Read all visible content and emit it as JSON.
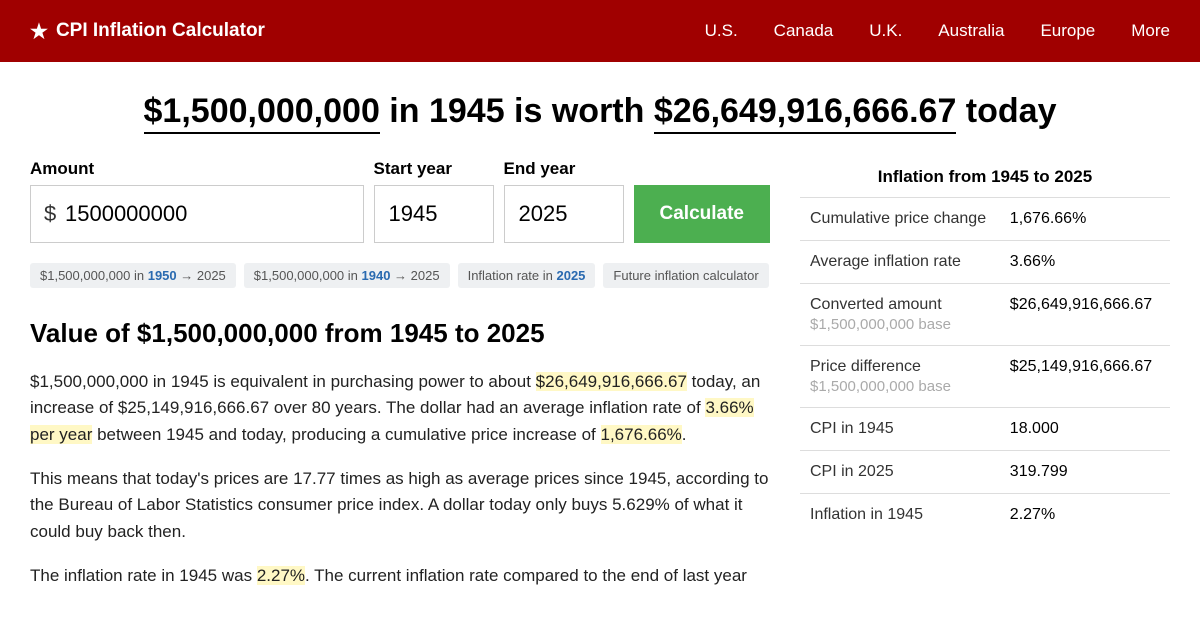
{
  "header": {
    "brand": "CPI Inflation Calculator",
    "nav": [
      "U.S.",
      "Canada",
      "U.K.",
      "Australia",
      "Europe",
      "More"
    ]
  },
  "headline": {
    "amount1": "$1,500,000,000",
    "mid1": " in 1945 is worth ",
    "amount2": "$26,649,916,666.67",
    "mid2": " today"
  },
  "form": {
    "amount_label": "Amount",
    "amount_value": "1500000000",
    "start_label": "Start year",
    "start_value": "1945",
    "end_label": "End year",
    "end_value": "2025",
    "button": "Calculate"
  },
  "chips": [
    {
      "pre": "$1,500,000,000 in ",
      "bold": "1950",
      "post": " → 2025"
    },
    {
      "pre": "$1,500,000,000 in ",
      "bold": "1940",
      "post": " → 2025"
    },
    {
      "pre": "Inflation rate in ",
      "bold": "2025",
      "post": ""
    },
    {
      "pre": "Future inflation calculator",
      "bold": "",
      "post": ""
    }
  ],
  "section_title": "Value of $1,500,000,000 from 1945 to 2025",
  "paragraphs": {
    "p1a": "$1,500,000,000 in 1945 is equivalent in purchasing power to about ",
    "p1h1": "$26,649,916,666.67",
    "p1b": " today, an increase of $25,149,916,666.67 over 80 years. The dollar had an average inflation rate of ",
    "p1h2": "3.66% per year",
    "p1c": " between 1945 and today, producing a cumulative price increase of ",
    "p1h3": "1,676.66%",
    "p1d": ".",
    "p2": "This means that today's prices are 17.77 times as high as average prices since 1945, according to the Bureau of Labor Statistics consumer price index. A dollar today only buys 5.629% of what it could buy back then.",
    "p3a": "The inflation rate in 1945 was ",
    "p3h1": "2.27%",
    "p3b": ". The current inflation rate compared to the end of last year"
  },
  "summary": {
    "title": "Inflation from 1945 to 2025",
    "rows": [
      {
        "label": "Cumulative price change",
        "sub": "",
        "value": "1,676.66%"
      },
      {
        "label": "Average inflation rate",
        "sub": "",
        "value": "3.66%"
      },
      {
        "label": "Converted amount",
        "sub": "$1,500,000,000 base",
        "value": "$26,649,916,666.67"
      },
      {
        "label": "Price difference",
        "sub": "$1,500,000,000 base",
        "value": "$25,149,916,666.67"
      },
      {
        "label": "CPI in 1945",
        "sub": "",
        "value": "18.000"
      },
      {
        "label": "CPI in 2025",
        "sub": "",
        "value": "319.799"
      },
      {
        "label": "Inflation in 1945",
        "sub": "",
        "value": "2.27%"
      }
    ]
  }
}
